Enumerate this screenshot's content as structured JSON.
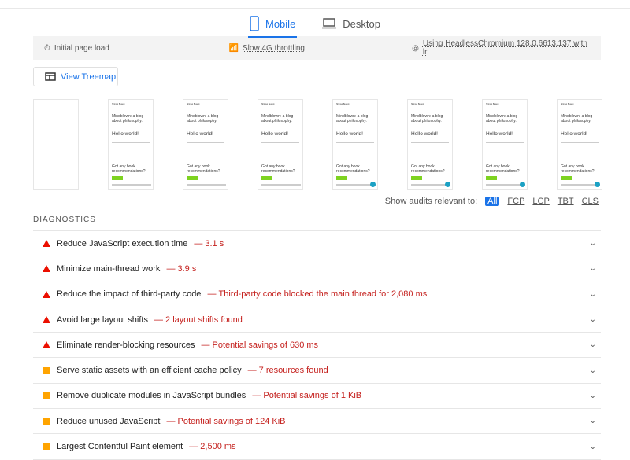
{
  "tabs": [
    {
      "label": "Mobile",
      "icon": "phone-icon",
      "active": true
    },
    {
      "label": "Desktop",
      "icon": "laptop-icon",
      "active": false
    }
  ],
  "env": {
    "load": "Initial page load",
    "throttle": "Slow 4G throttling",
    "browser": "Using HeadlessChromium 128.0.6613.137 with lr"
  },
  "treemap": "View Treemap",
  "frame": {
    "header": "Shinsei Beauty",
    "title": "Mindblown: a blog about philosophy.",
    "hello": "Hello world!",
    "cta": "Got any book recommendations?"
  },
  "filter": {
    "label": "Show audits relevant to:",
    "options": [
      "All",
      "FCP",
      "LCP",
      "TBT",
      "CLS"
    ]
  },
  "diagnostics": "DIAGNOSTICS",
  "audits": [
    {
      "title": "Reduce JavaScript execution time",
      "value": "3.1 s",
      "severity": "fail"
    },
    {
      "title": "Minimize main-thread work",
      "value": "3.9 s",
      "severity": "fail"
    },
    {
      "title": "Reduce the impact of third-party code",
      "value": "Third-party code blocked the main thread for 2,080 ms",
      "severity": "fail"
    },
    {
      "title": "Avoid large layout shifts",
      "value": "2 layout shifts found",
      "severity": "fail"
    },
    {
      "title": "Eliminate render-blocking resources",
      "value": "Potential savings of 630 ms",
      "severity": "fail"
    },
    {
      "title": "Serve static assets with an efficient cache policy",
      "value": "7 resources found",
      "severity": "average"
    },
    {
      "title": "Remove duplicate modules in JavaScript bundles",
      "value": "Potential savings of 1 KiB",
      "severity": "average"
    },
    {
      "title": "Reduce unused JavaScript",
      "value": "Potential savings of 124 KiB",
      "severity": "average"
    },
    {
      "title": "Largest Contentful Paint element",
      "value": "2,500 ms",
      "severity": "average"
    }
  ],
  "colors": {
    "accent": "#1a73e8",
    "fail": "#eb0f00",
    "average": "#ffa400",
    "value": "#c5221f"
  }
}
